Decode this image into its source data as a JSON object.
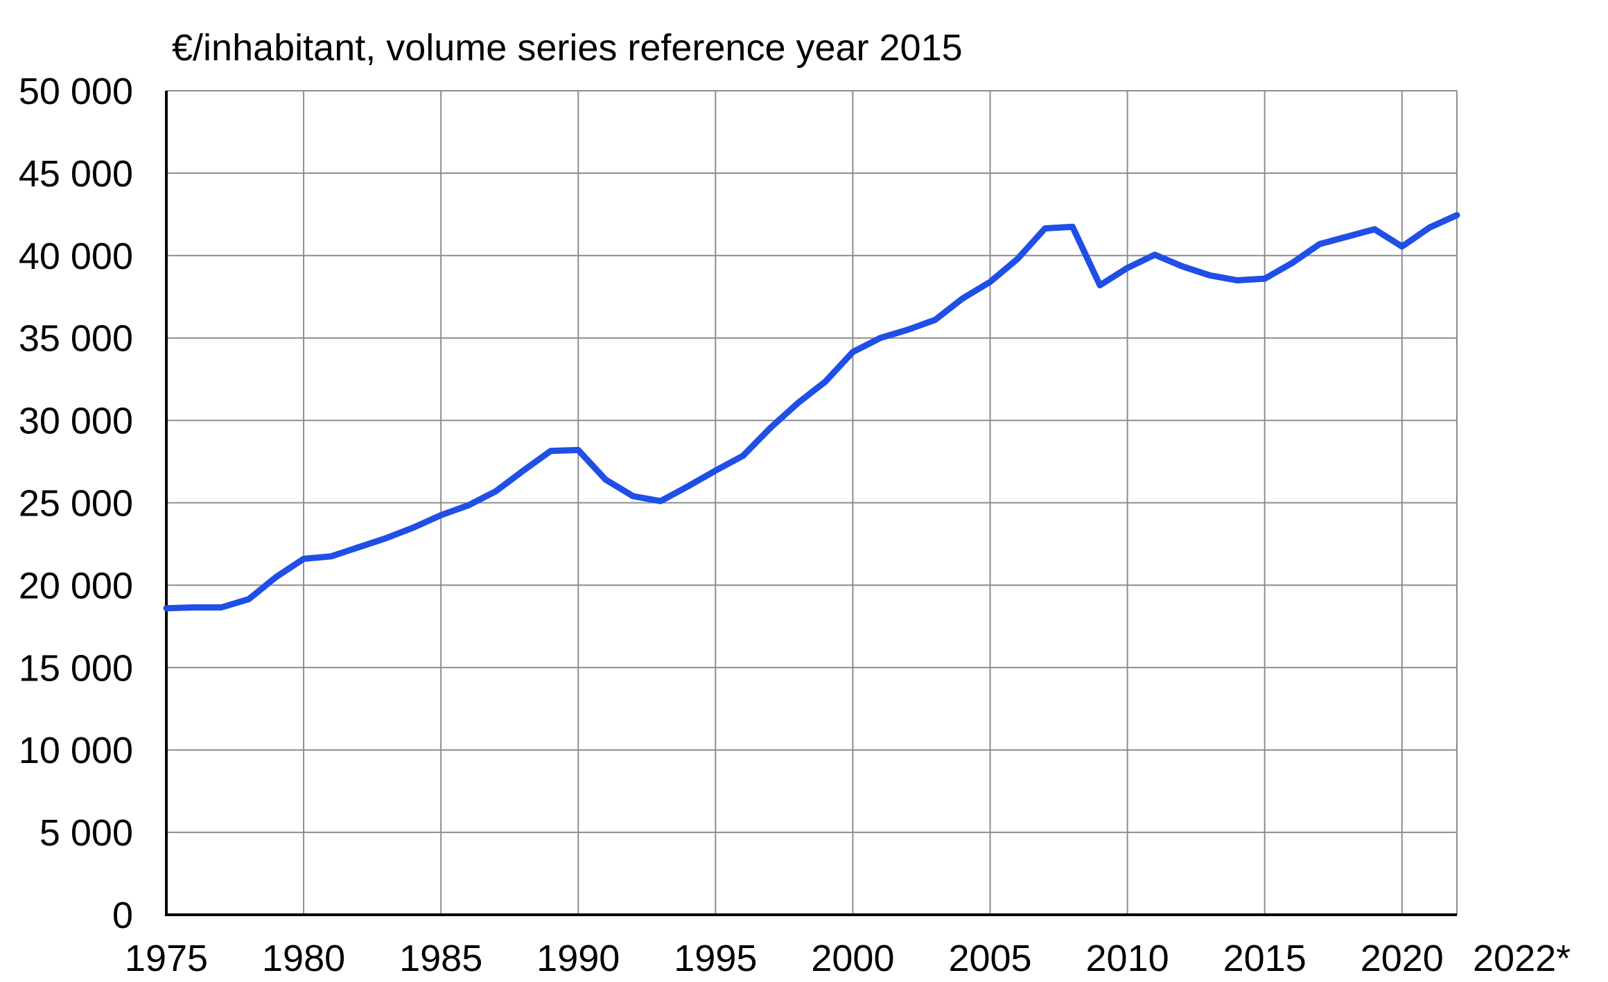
{
  "chart_data": {
    "type": "line",
    "title": "€/inhabitant, volume series reference year 2015",
    "xlabel": "",
    "ylabel": "",
    "xlim": [
      1975,
      2022
    ],
    "ylim": [
      0,
      50000
    ],
    "grid": true,
    "y_ticks": [
      {
        "value": 0,
        "label": "0"
      },
      {
        "value": 5000,
        "label": "5 000"
      },
      {
        "value": 10000,
        "label": "10 000"
      },
      {
        "value": 15000,
        "label": "15 000"
      },
      {
        "value": 20000,
        "label": "20 000"
      },
      {
        "value": 25000,
        "label": "25 000"
      },
      {
        "value": 30000,
        "label": "30 000"
      },
      {
        "value": 35000,
        "label": "35 000"
      },
      {
        "value": 40000,
        "label": "40 000"
      },
      {
        "value": 45000,
        "label": "45 000"
      },
      {
        "value": 50000,
        "label": "50 000"
      }
    ],
    "x_ticks": [
      {
        "value": 1975,
        "label": "1975"
      },
      {
        "value": 1980,
        "label": "1980"
      },
      {
        "value": 1985,
        "label": "1985"
      },
      {
        "value": 1990,
        "label": "1990"
      },
      {
        "value": 1995,
        "label": "1995"
      },
      {
        "value": 2000,
        "label": "2000"
      },
      {
        "value": 2005,
        "label": "2005"
      },
      {
        "value": 2010,
        "label": "2010"
      },
      {
        "value": 2015,
        "label": "2015"
      },
      {
        "value": 2020,
        "label": "2020"
      },
      {
        "value": 2022,
        "label": "2022*"
      }
    ],
    "series": [
      {
        "color": "#1f4fe6",
        "x": [
          1975,
          1976,
          1977,
          1978,
          1979,
          1980,
          1981,
          1982,
          1983,
          1984,
          1985,
          1986,
          1987,
          1988,
          1989,
          1990,
          1991,
          1992,
          1993,
          1994,
          1995,
          1996,
          1997,
          1998,
          1999,
          2000,
          2001,
          2002,
          2003,
          2004,
          2005,
          2006,
          2007,
          2008,
          2009,
          2010,
          2011,
          2012,
          2013,
          2014,
          2015,
          2016,
          2017,
          2018,
          2019,
          2020,
          2021,
          2022
        ],
        "y": [
          18600,
          18650,
          18650,
          19150,
          20500,
          21600,
          21750,
          22300,
          22850,
          23500,
          24250,
          24850,
          25700,
          26950,
          28150,
          28200,
          26400,
          25400,
          25100,
          26000,
          26950,
          27850,
          29550,
          31050,
          32350,
          34150,
          35000,
          35500,
          36100,
          37400,
          38400,
          39800,
          41650,
          41750,
          38200,
          39250,
          40050,
          39350,
          38800,
          38500,
          38600,
          39550,
          40700,
          41150,
          41600,
          40550,
          41700,
          42450
        ]
      }
    ]
  }
}
